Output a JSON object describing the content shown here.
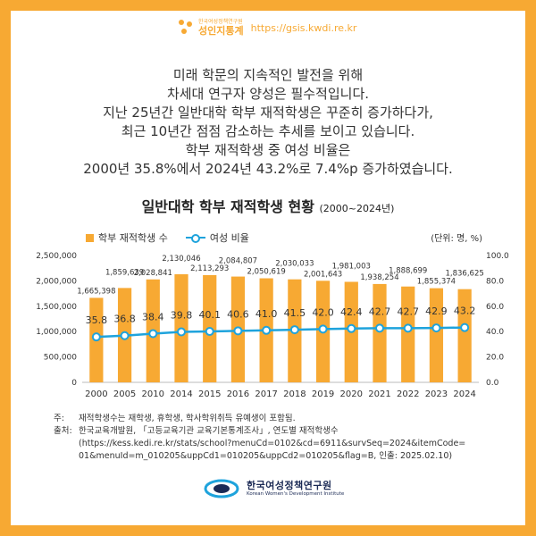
{
  "brand": {
    "org_small": "한국여성정책연구원",
    "name": "성인지통계",
    "url": "https://gsis.kwdi.re.kr"
  },
  "intro_lines": [
    "미래 학문의 지속적인 발전을 위해",
    "차세대 연구자 양성은 필수적입니다.",
    "지난 25년간 일반대학 학부 재적학생은 꾸준히 증가하다가,",
    "최근 10년간 점점 감소하는 추세를 보이고 있습니다.",
    "학부 재적학생 중 여성 비율은",
    "2000년 35.8%에서 2024년 43.2%로 7.4%p 증가하였습니다."
  ],
  "chart_data": {
    "type": "bar+line",
    "title": "일반대학 학부 재적학생 현황",
    "title_range": "(2000~2024년)",
    "unit_label": "(단위: 명, %)",
    "categories": [
      "2000",
      "2005",
      "2010",
      "2014",
      "2015",
      "2016",
      "2017",
      "2018",
      "2019",
      "2020",
      "2021",
      "2022",
      "2023",
      "2024"
    ],
    "series": [
      {
        "name": "학부 재적학생 수",
        "type": "bar",
        "axis": "left",
        "color": "#f7a933",
        "values": [
          1665398,
          1859639,
          2028841,
          2130046,
          2113293,
          2084807,
          2050619,
          2030033,
          2001643,
          1981003,
          1938254,
          1888699,
          1855374,
          1836625
        ],
        "labels": [
          "1,665,398",
          "1,859,639",
          "2,028,841",
          "2,130,046",
          "2,113,293",
          "2,084,807",
          "2,050,619",
          "2,030,033",
          "2,001,643",
          "1,981,003",
          "1,938,254",
          "1,888,699",
          "1,855,374",
          "1,836,625"
        ]
      },
      {
        "name": "여성 비율",
        "type": "line",
        "axis": "right",
        "color": "#1ea3dc",
        "values": [
          35.8,
          36.8,
          38.4,
          39.8,
          40.1,
          40.6,
          41.0,
          41.5,
          42.0,
          42.4,
          42.7,
          42.7,
          42.9,
          43.2
        ],
        "labels": [
          "35.8",
          "36.8",
          "38.4",
          "39.8",
          "40.1",
          "40.6",
          "41.0",
          "41.5",
          "42.0",
          "42.4",
          "42.7",
          "42.7",
          "42.9",
          "43.2"
        ]
      }
    ],
    "y_left": {
      "min": 0,
      "max": 2500000,
      "ticks": [
        "0",
        "500,000",
        "1,000,000",
        "1,500,000",
        "2,000,000",
        "2,500,000"
      ]
    },
    "y_right": {
      "min": 0,
      "max": 100,
      "ticks": [
        "0.0",
        "20.0",
        "40.0",
        "60.0",
        "80.0",
        "100.0"
      ]
    },
    "grid": false,
    "legend": "top-left"
  },
  "notes": {
    "note_label": "주:",
    "note_text": "재적학생수는 재학생, 휴학생, 학사학위취득 유예생이 포함됨.",
    "source_label": "출처:",
    "source_text": "한국교육개발원, 「고등교육기관 교육기본통계조사」, 연도별 재적학생수",
    "source_url_1": "(https://kess.kedi.re.kr/stats/school?menuCd=0102&cd=6911&survSeq=2024&itemCode=",
    "source_url_2": "01&menuId=m_010205&uppCd1=010205&uppCd2=010205&flag=B, 인출: 2025.02.10)"
  },
  "footer": {
    "org_ko": "한국여성정책연구원",
    "org_en": "Korean Women's Development Institute",
    "accent": "#1b2a55"
  }
}
